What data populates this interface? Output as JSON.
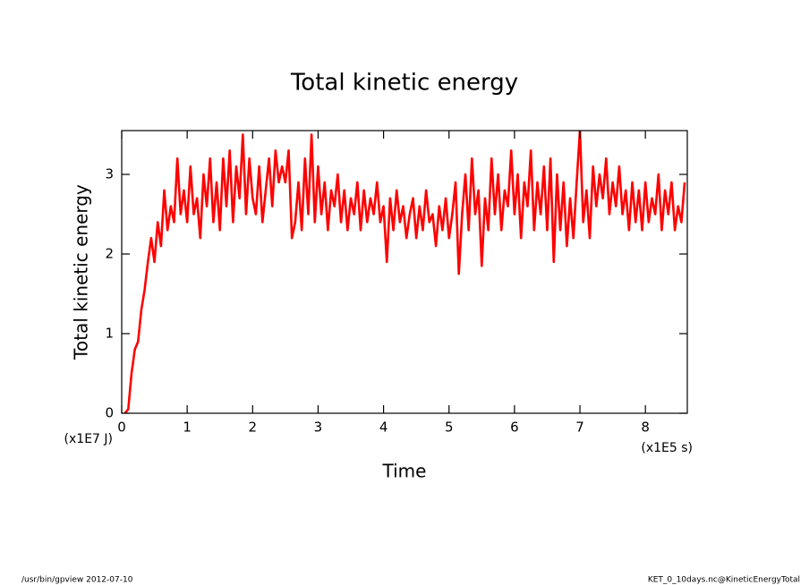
{
  "chart_data": {
    "type": "line",
    "title": "Total kinetic energy",
    "ylabel": "Total kinetic energy",
    "xlabel": "Time",
    "yunit": "(x1E7 J)",
    "xunit": "(x1E5 s)",
    "footer_left": "/usr/bin/gpview  2012-07-10",
    "footer_right": "KET_0_10days.nc@KineticEnergyTotal",
    "xlim": [
      0,
      8.64
    ],
    "ylim": [
      0,
      3.55
    ],
    "xticks": [
      0,
      1,
      2,
      3,
      4,
      5,
      6,
      7,
      8
    ],
    "yticks": [
      0,
      1,
      2,
      3
    ],
    "x": [
      0.05,
      0.1,
      0.15,
      0.2,
      0.25,
      0.3,
      0.35,
      0.4,
      0.45,
      0.5,
      0.55,
      0.6,
      0.65,
      0.7,
      0.75,
      0.8,
      0.85,
      0.9,
      0.95,
      1.0,
      1.05,
      1.1,
      1.15,
      1.2,
      1.25,
      1.3,
      1.35,
      1.4,
      1.45,
      1.5,
      1.55,
      1.6,
      1.65,
      1.7,
      1.75,
      1.8,
      1.85,
      1.9,
      1.95,
      2.0,
      2.05,
      2.1,
      2.15,
      2.2,
      2.25,
      2.3,
      2.35,
      2.4,
      2.45,
      2.5,
      2.55,
      2.6,
      2.65,
      2.7,
      2.75,
      2.8,
      2.85,
      2.9,
      2.95,
      3.0,
      3.05,
      3.1,
      3.15,
      3.2,
      3.25,
      3.3,
      3.35,
      3.4,
      3.45,
      3.5,
      3.55,
      3.6,
      3.65,
      3.7,
      3.75,
      3.8,
      3.85,
      3.9,
      3.95,
      4.0,
      4.05,
      4.1,
      4.15,
      4.2,
      4.25,
      4.3,
      4.35,
      4.4,
      4.45,
      4.5,
      4.55,
      4.6,
      4.65,
      4.7,
      4.75,
      4.8,
      4.85,
      4.9,
      4.95,
      5.0,
      5.05,
      5.1,
      5.15,
      5.2,
      5.25,
      5.3,
      5.35,
      5.4,
      5.45,
      5.5,
      5.55,
      5.6,
      5.65,
      5.7,
      5.75,
      5.8,
      5.85,
      5.9,
      5.95,
      6.0,
      6.05,
      6.1,
      6.15,
      6.2,
      6.25,
      6.3,
      6.35,
      6.4,
      6.45,
      6.5,
      6.55,
      6.6,
      6.65,
      6.7,
      6.75,
      6.8,
      6.85,
      6.9,
      6.95,
      7.0,
      7.05,
      7.1,
      7.15,
      7.2,
      7.25,
      7.3,
      7.35,
      7.4,
      7.45,
      7.5,
      7.55,
      7.6,
      7.65,
      7.7,
      7.75,
      7.8,
      7.85,
      7.9,
      7.95,
      8.0,
      8.05,
      8.1,
      8.15,
      8.2,
      8.25,
      8.3,
      8.35,
      8.4,
      8.45,
      8.5,
      8.55,
      8.6
    ],
    "series": [
      {
        "color": "#ff0000",
        "values": [
          0,
          0.05,
          0.5,
          0.8,
          0.9,
          1.3,
          1.55,
          1.9,
          2.2,
          1.9,
          2.4,
          2.1,
          2.8,
          2.3,
          2.6,
          2.4,
          3.2,
          2.5,
          2.8,
          2.4,
          3.1,
          2.5,
          2.7,
          2.2,
          3.0,
          2.6,
          3.2,
          2.4,
          2.9,
          2.3,
          3.2,
          2.6,
          3.3,
          2.4,
          3.1,
          2.7,
          3.5,
          2.5,
          3.2,
          2.7,
          2.5,
          3.1,
          2.4,
          2.8,
          3.2,
          2.6,
          3.3,
          2.9,
          3.1,
          2.9,
          3.3,
          2.2,
          2.4,
          2.9,
          2.3,
          3.2,
          2.5,
          3.5,
          2.4,
          3.1,
          2.5,
          2.9,
          2.3,
          2.8,
          2.6,
          3.0,
          2.4,
          2.8,
          2.3,
          2.7,
          2.5,
          2.9,
          2.3,
          2.8,
          2.4,
          2.7,
          2.5,
          2.9,
          2.4,
          2.6,
          1.9,
          2.7,
          2.3,
          2.8,
          2.4,
          2.6,
          2.2,
          2.5,
          2.7,
          2.2,
          2.6,
          2.3,
          2.8,
          2.4,
          2.5,
          2.1,
          2.6,
          2.3,
          2.7,
          2.2,
          2.5,
          2.9,
          1.75,
          2.5,
          3.0,
          2.3,
          3.2,
          2.5,
          2.8,
          1.85,
          2.7,
          2.3,
          3.2,
          2.5,
          3.0,
          2.3,
          2.8,
          2.6,
          3.3,
          2.5,
          3.0,
          2.2,
          2.9,
          2.6,
          3.3,
          2.3,
          2.9,
          2.5,
          3.1,
          2.3,
          3.2,
          1.9,
          3.0,
          2.3,
          2.9,
          2.1,
          2.7,
          2.2,
          2.9,
          3.55,
          2.4,
          2.8,
          2.2,
          3.1,
          2.6,
          3.0,
          2.7,
          3.2,
          2.5,
          2.9,
          2.6,
          3.1,
          2.5,
          2.8,
          2.3,
          2.9,
          2.4,
          2.8,
          2.3,
          2.9,
          2.4,
          2.7,
          2.5,
          3.0,
          2.3,
          2.8,
          2.5,
          2.9,
          2.3,
          2.6,
          2.4,
          2.9
        ]
      }
    ]
  }
}
